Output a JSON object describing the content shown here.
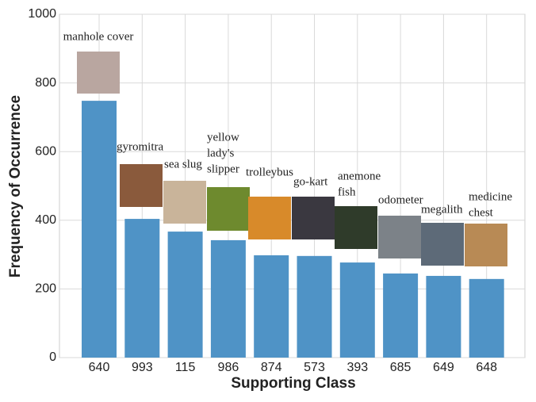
{
  "chart_data": {
    "type": "bar",
    "xlabel": "Supporting Class",
    "ylabel": "Frequency of Occurrence",
    "categories": [
      "640",
      "993",
      "115",
      "986",
      "874",
      "573",
      "393",
      "685",
      "649",
      "648"
    ],
    "values": [
      748,
      404,
      367,
      342,
      298,
      296,
      277,
      245,
      238,
      229
    ],
    "color": "#4f93c6",
    "ylim": [
      0,
      1000
    ],
    "yticks": [
      0,
      200,
      400,
      600,
      800,
      1000
    ],
    "grid": true,
    "annotations": [
      [
        "manhole cover"
      ],
      [
        "gyromitra"
      ],
      [
        "sea slug"
      ],
      [
        "yellow",
        "lady's",
        "slipper"
      ],
      [
        "trolleybus"
      ],
      [
        "go-kart"
      ],
      [
        "anemone",
        "fish"
      ],
      [
        "odometer"
      ],
      [
        "megalith"
      ],
      [
        "medicine",
        "chest"
      ]
    ]
  }
}
